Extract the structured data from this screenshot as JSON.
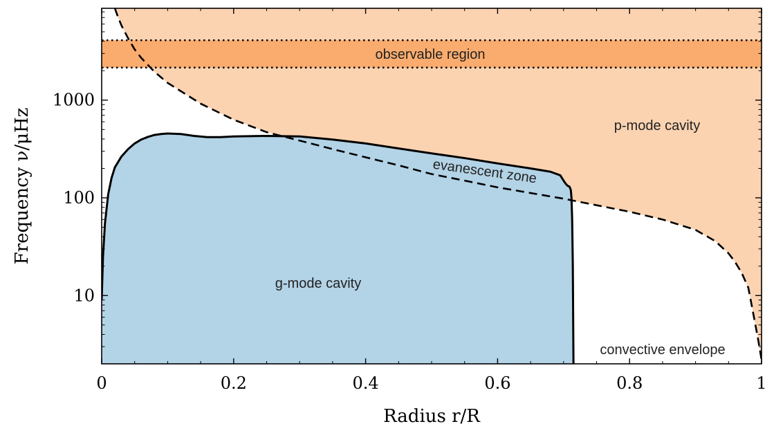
{
  "chart_data": {
    "type": "area",
    "xlabel": "Radius r/R",
    "ylabel": "Frequency ν/μHz",
    "xlim": [
      0,
      1
    ],
    "ylim": [
      2,
      8700
    ],
    "yscale": "log",
    "x_ticks": [
      {
        "value": 0,
        "label": "0"
      },
      {
        "value": 0.2,
        "label": "0.2"
      },
      {
        "value": 0.4,
        "label": "0.4"
      },
      {
        "value": 0.6,
        "label": "0.6"
      },
      {
        "value": 0.8,
        "label": "0.8"
      },
      {
        "value": 1,
        "label": "1"
      }
    ],
    "y_ticks": [
      {
        "value": 10,
        "label": "10"
      },
      {
        "value": 100,
        "label": "100"
      },
      {
        "value": 1000,
        "label": "1000"
      }
    ],
    "grid": false,
    "legend": "none",
    "series": [
      {
        "kind": "solid",
        "x": [
          0.0,
          0.002,
          0.005,
          0.01,
          0.015,
          0.02,
          0.03,
          0.04,
          0.05,
          0.06,
          0.07,
          0.08,
          0.09,
          0.1,
          0.12,
          0.14,
          0.16,
          0.18,
          0.2,
          0.25,
          0.3,
          0.35,
          0.4,
          0.45,
          0.5,
          0.55,
          0.6,
          0.65,
          0.68,
          0.695,
          0.7,
          0.703,
          0.706,
          0.709,
          0.711,
          0.712,
          0.713,
          0.714,
          0.715
        ],
        "y": [
          9,
          25,
          55,
          110,
          160,
          205,
          265,
          315,
          360,
          395,
          420,
          440,
          450,
          455,
          450,
          430,
          418,
          418,
          425,
          430,
          425,
          395,
          360,
          320,
          285,
          255,
          225,
          200,
          185,
          170,
          150,
          140,
          133,
          130,
          120,
          100,
          60,
          20,
          2
        ]
      },
      {
        "kind": "dashed",
        "x": [
          0.02,
          0.025,
          0.03,
          0.04,
          0.05,
          0.06,
          0.08,
          0.1,
          0.15,
          0.2,
          0.25,
          0.3,
          0.35,
          0.4,
          0.45,
          0.5,
          0.55,
          0.6,
          0.65,
          0.7,
          0.75,
          0.8,
          0.85,
          0.9,
          0.93,
          0.95,
          0.96,
          0.97,
          0.98,
          0.985,
          0.99,
          0.995,
          1.0
        ],
        "y": [
          8700,
          7000,
          5800,
          4300,
          3300,
          2700,
          1950,
          1500,
          920,
          630,
          470,
          385,
          315,
          260,
          215,
          175,
          150,
          128,
          112,
          98,
          84,
          72,
          60,
          47,
          36,
          27,
          22,
          17,
          12,
          8,
          5.3,
          3.5,
          2.2
        ]
      }
    ],
    "observable_region": [
      2150,
      4100
    ],
    "annotations": {
      "observable": "observable region",
      "p_mode": "p-mode cavity",
      "evanescent": "evanescent zone",
      "g_mode": "g-mode cavity",
      "convective": "convective envelope"
    },
    "colors": {
      "p_fill": "#fbd3b1",
      "observable_fill": "#f9ac6e",
      "g_fill": "#b3d3e6",
      "line": "#000000"
    }
  }
}
